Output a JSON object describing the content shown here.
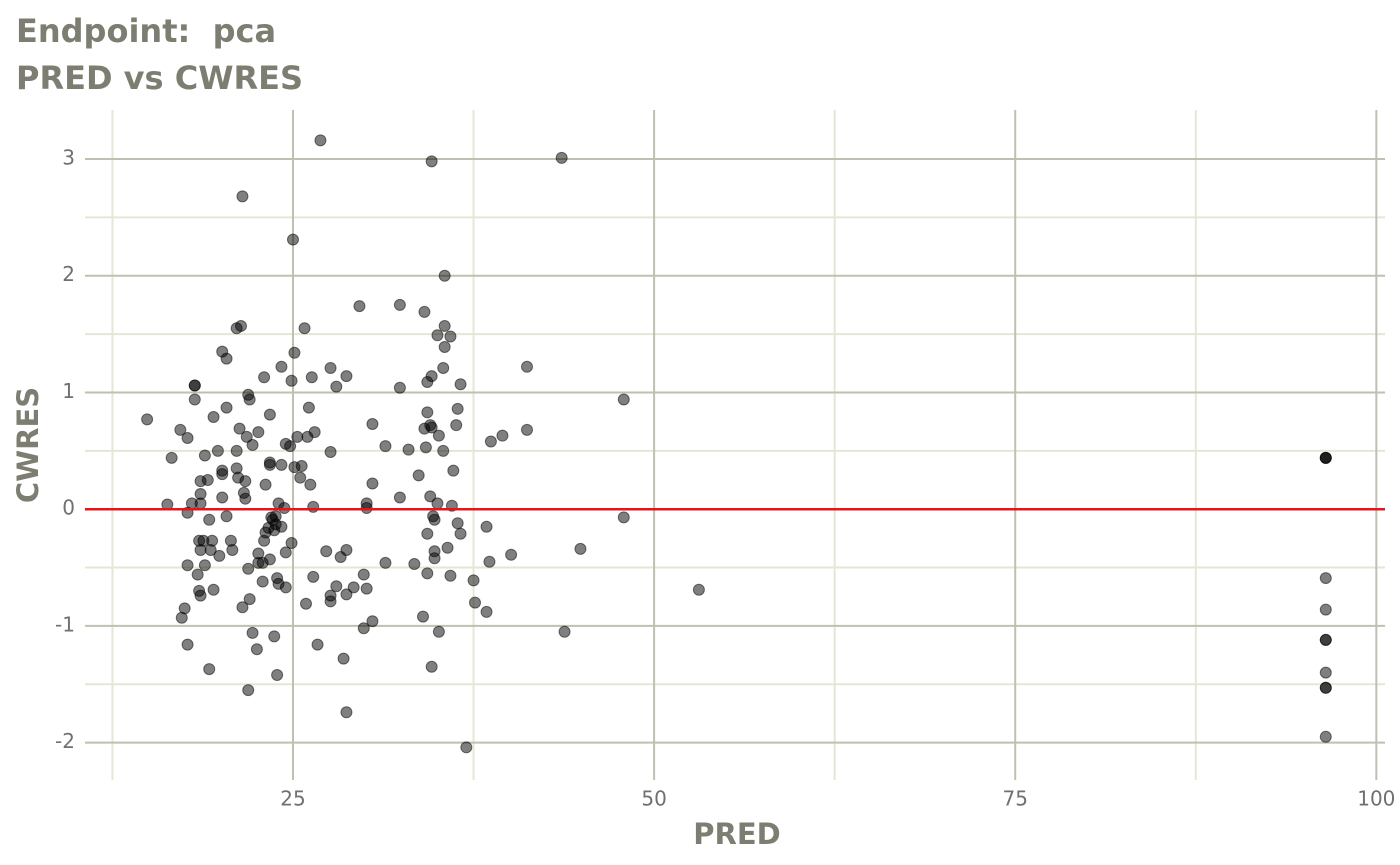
{
  "chart_data": {
    "type": "scatter",
    "title": "Endpoint:  pca",
    "subtitle": "PRED vs CWRES",
    "x_label": "PRED",
    "y_label": "CWRES",
    "xlim": [
      10.6,
      100.6
    ],
    "ylim": [
      -2.32,
      3.42
    ],
    "xticks": [
      25,
      50,
      75,
      100
    ],
    "yticks": [
      -2,
      -1,
      0,
      1,
      2,
      3
    ],
    "x_minor_ticks": [
      12.5,
      37.5,
      62.5,
      87.5
    ],
    "y_minor_ticks": [
      -1.5,
      -0.5,
      0.5,
      1.5,
      2.5
    ],
    "grid": true,
    "color": "#000000",
    "reference_line": {
      "value": 0,
      "color": "#e8141a"
    },
    "x": [
      14.9,
      16.3,
      16.6,
      17.2,
      17.7,
      17.3,
      17.5,
      17.7,
      17.7,
      17.7,
      18.0,
      18.2,
      18.2,
      18.2,
      18.5,
      18.6,
      18.6,
      18.4,
      18.5,
      18.6,
      18.6,
      18.6,
      18.8,
      18.9,
      18.9,
      19.1,
      19.2,
      19.2,
      19.3,
      19.4,
      19.5,
      19.5,
      19.8,
      19.9,
      20.1,
      20.1,
      20.1,
      20.1,
      20.4,
      20.4,
      20.4,
      20.7,
      20.8,
      21.1,
      21.1,
      21.1,
      21.2,
      21.3,
      21.4,
      21.5,
      21.5,
      21.6,
      21.7,
      21.7,
      21.8,
      21.9,
      21.9,
      21.9,
      22.0,
      22.0,
      22.2,
      22.2,
      22.5,
      22.6,
      22.6,
      22.6,
      22.9,
      22.9,
      23.0,
      23.0,
      23.1,
      23.1,
      23.3,
      23.4,
      23.4,
      23.4,
      23.4,
      23.5,
      23.6,
      23.7,
      23.7,
      23.8,
      23.8,
      23.9,
      23.9,
      24.0,
      24.0,
      24.2,
      24.2,
      24.2,
      24.4,
      24.5,
      24.5,
      24.5,
      24.8,
      24.9,
      24.9,
      25.0,
      25.1,
      25.1,
      25.3,
      25.5,
      25.6,
      25.8,
      25.9,
      26.0,
      26.1,
      26.2,
      26.3,
      26.4,
      26.4,
      26.5,
      26.7,
      26.9,
      27.3,
      27.6,
      27.6,
      27.6,
      27.6,
      28.0,
      28.0,
      28.3,
      28.5,
      28.7,
      28.7,
      28.7,
      28.7,
      29.2,
      29.6,
      29.9,
      29.9,
      30.1,
      30.1,
      30.1,
      30.5,
      30.5,
      30.5,
      31.4,
      31.4,
      32.4,
      32.4,
      32.4,
      33.0,
      33.4,
      33.7,
      34.0,
      34.1,
      34.1,
      34.2,
      34.3,
      34.3,
      34.3,
      34.3,
      34.5,
      34.5,
      34.6,
      34.6,
      34.6,
      34.6,
      34.7,
      34.8,
      34.8,
      34.8,
      35.0,
      35.0,
      35.1,
      35.1,
      35.4,
      35.4,
      35.5,
      35.5,
      35.5,
      35.7,
      35.9,
      35.9,
      36.0,
      36.1,
      36.3,
      36.4,
      36.4,
      36.6,
      36.6,
      37.0,
      37.5,
      37.6,
      38.4,
      38.4,
      38.6,
      38.7,
      39.5,
      40.1,
      41.2,
      41.2,
      43.6,
      43.8,
      44.9,
      47.9,
      47.9,
      53.1,
      96.5,
      96.5,
      96.5,
      96.5,
      96.5,
      96.5,
      96.5,
      96.5,
      96.5,
      96.5,
      96.5
    ],
    "values": [
      0.77,
      0.04,
      0.44,
      0.68,
      0.61,
      -0.93,
      -0.85,
      -0.03,
      -0.48,
      -1.16,
      0.05,
      1.06,
      1.06,
      0.94,
      -0.27,
      0.13,
      0.05,
      -0.56,
      -0.7,
      -0.74,
      0.24,
      -0.35,
      -0.27,
      0.46,
      -0.48,
      0.25,
      -1.37,
      -0.09,
      -0.35,
      -0.27,
      0.79,
      -0.69,
      0.5,
      -0.4,
      1.35,
      0.33,
      0.3,
      0.1,
      1.29,
      0.87,
      -0.06,
      -0.27,
      -0.35,
      1.55,
      0.5,
      0.35,
      0.27,
      0.69,
      1.57,
      -0.84,
      2.68,
      0.14,
      0.09,
      0.24,
      0.62,
      0.98,
      -0.51,
      -1.55,
      -0.77,
      0.94,
      0.55,
      -1.06,
      -1.2,
      -0.38,
      -0.46,
      0.66,
      -0.62,
      -0.46,
      1.13,
      -0.27,
      0.21,
      -0.2,
      -0.16,
      0.81,
      0.4,
      0.38,
      -0.43,
      -0.07,
      -0.09,
      -0.18,
      -1.09,
      -0.13,
      -0.06,
      -1.42,
      -0.59,
      -0.64,
      0.05,
      -0.15,
      0.38,
      1.22,
      0.01,
      -0.37,
      -0.67,
      0.56,
      0.54,
      -0.29,
      1.1,
      2.31,
      1.34,
      0.36,
      0.62,
      0.27,
      0.37,
      1.55,
      -0.81,
      0.62,
      0.87,
      0.21,
      1.13,
      0.02,
      -0.58,
      0.66,
      -1.16,
      3.16,
      -0.36,
      0.49,
      1.21,
      -0.74,
      -0.79,
      1.05,
      -0.66,
      -0.41,
      -1.28,
      -0.35,
      -0.73,
      -1.74,
      1.14,
      -0.67,
      1.74,
      -1.02,
      -0.56,
      0.05,
      0.01,
      -0.68,
      -0.96,
      0.73,
      0.22,
      0.54,
      -0.46,
      1.04,
      0.1,
      1.75,
      0.51,
      -0.47,
      0.29,
      -0.92,
      1.69,
      0.69,
      0.53,
      -0.55,
      0.83,
      -0.21,
      1.09,
      0.72,
      0.11,
      0.7,
      2.98,
      1.14,
      -1.35,
      -0.06,
      -0.42,
      -0.36,
      -0.09,
      0.05,
      1.49,
      0.63,
      -1.05,
      0.5,
      1.21,
      1.57,
      1.39,
      2.0,
      -0.33,
      -0.57,
      1.48,
      0.03,
      0.33,
      0.72,
      -0.12,
      0.86,
      -0.21,
      1.07,
      -2.04,
      -0.61,
      -0.8,
      -0.88,
      -0.15,
      -0.45,
      0.58,
      0.63,
      -0.39,
      0.68,
      1.22,
      3.01,
      -1.05,
      -0.34,
      0.94,
      -0.07,
      -0.69,
      0.44,
      0.44,
      0.44,
      -0.59,
      -0.86,
      -1.12,
      -1.12,
      -1.4,
      -1.53,
      -1.53,
      -1.95
    ]
  }
}
